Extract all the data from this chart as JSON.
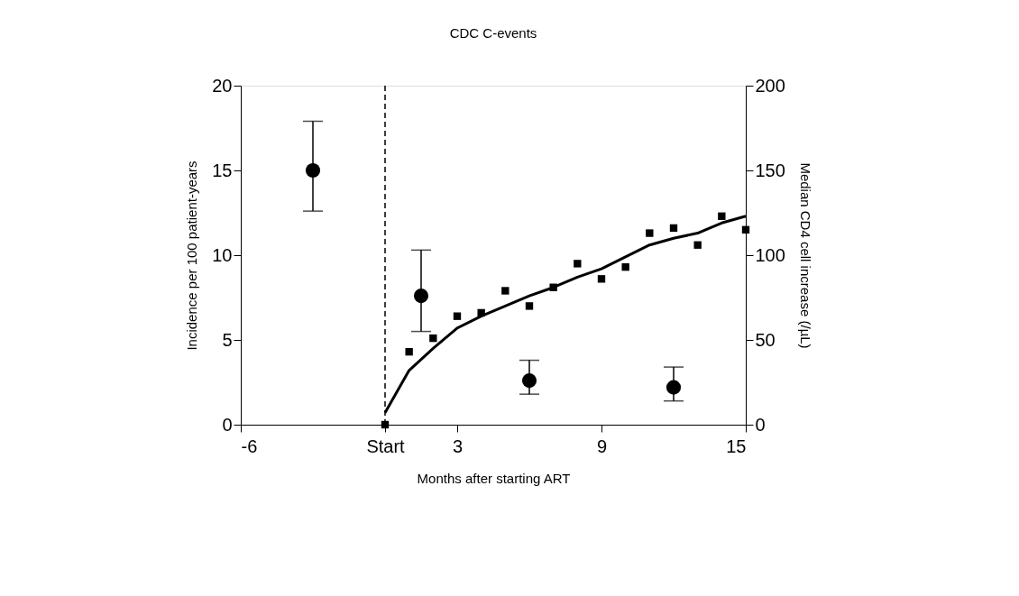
{
  "chart_data": {
    "type": "scatter",
    "title": "CDC C-events",
    "xlabel": "Months after starting ART",
    "ylabel": "Incidence per 100 patient-years",
    "y2label": "Median CD4 cell increase (/µL)",
    "xlim": [
      -6,
      15
    ],
    "xticks": [
      -6,
      {
        "value": 0,
        "label": "Start"
      },
      3,
      9,
      15
    ],
    "ylim": [
      0,
      20
    ],
    "yticks": [
      0,
      5,
      10,
      15,
      20
    ],
    "y2lim": [
      0,
      200
    ],
    "y2ticks": [
      0,
      50,
      100,
      150,
      200
    ],
    "grid": false,
    "ref_lines": [
      {
        "axis": "x",
        "value": 0,
        "color": "#000000",
        "line_style": "dashed"
      }
    ],
    "series": [
      {
        "color": "#000000",
        "marker": "circle",
        "x": [
          -3,
          1.5,
          6,
          12
        ],
        "values": [
          15.0,
          7.6,
          2.6,
          2.2
        ],
        "errors": [
          [
            12.6,
            17.9
          ],
          [
            5.5,
            10.3
          ],
          [
            1.8,
            3.8
          ],
          [
            1.4,
            3.4
          ]
        ]
      },
      {
        "color": "#000000",
        "marker": "square",
        "axis": "y2",
        "x": [
          0,
          1,
          2,
          3,
          4,
          5,
          6,
          7,
          8,
          9,
          10,
          11,
          12,
          13,
          14,
          15
        ],
        "values": [
          0,
          43,
          51,
          64,
          66,
          79,
          70,
          81,
          95,
          86,
          93,
          113,
          116,
          106,
          123,
          115
        ]
      },
      {
        "type": "line",
        "color": "#000000",
        "line_style": "solid",
        "axis": "y2",
        "x": [
          0,
          1,
          2,
          3,
          4,
          5,
          6,
          7,
          8,
          9,
          10,
          11,
          12,
          13,
          14,
          15
        ],
        "values": [
          7,
          32,
          45,
          57,
          64,
          70,
          76,
          81,
          87,
          92,
          99,
          106,
          110,
          113,
          119,
          123
        ]
      }
    ]
  }
}
